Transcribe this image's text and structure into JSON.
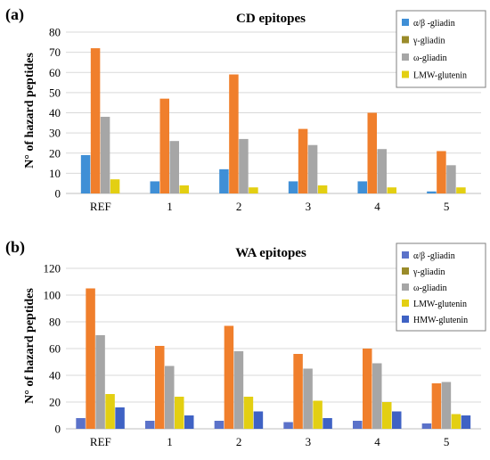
{
  "chart_data": [
    {
      "type": "bar",
      "panel_label": "(a)",
      "title": "CD epitopes",
      "ylabel": "N° of hazard peptides",
      "xlabel": "",
      "categories": [
        "REF",
        "1",
        "2",
        "3",
        "4",
        "5"
      ],
      "ylim": [
        0,
        80
      ],
      "yticks": [
        0,
        10,
        20,
        30,
        40,
        50,
        60,
        70,
        80
      ],
      "grid": true,
      "legend_position": "top-right",
      "series": [
        {
          "name": "α/β -gliadin",
          "color": "#3f8fd6",
          "values": [
            19,
            6,
            12,
            6,
            6,
            1
          ]
        },
        {
          "name": "γ-gliadin",
          "color": "#f07f2c",
          "values": [
            72,
            47,
            59,
            32,
            40,
            21
          ]
        },
        {
          "name": "ω-gliadin",
          "color": "#a6a6a6",
          "values": [
            38,
            26,
            27,
            24,
            22,
            14
          ]
        },
        {
          "name": "LMW-glutenin",
          "color": "#e3cf12",
          "values": [
            7,
            4,
            3,
            4,
            3,
            3
          ]
        }
      ],
      "legend_colors": [
        "#3f8fd6",
        "#9a8b2a",
        "#a6a6a6",
        "#e3cf12"
      ]
    },
    {
      "type": "bar",
      "panel_label": "(b)",
      "title": "WA epitopes",
      "ylabel": "N° of hazard peptides",
      "xlabel": "",
      "categories": [
        "REF",
        "1",
        "2",
        "3",
        "4",
        "5"
      ],
      "ylim": [
        0,
        120
      ],
      "yticks": [
        0,
        20,
        40,
        60,
        80,
        100,
        120
      ],
      "grid": true,
      "legend_position": "top-right",
      "series": [
        {
          "name": "α/β -gliadin",
          "color": "#5b72c9",
          "values": [
            8,
            6,
            6,
            5,
            6,
            4
          ]
        },
        {
          "name": "γ-gliadin",
          "color": "#f07f2c",
          "values": [
            105,
            62,
            77,
            56,
            60,
            34
          ]
        },
        {
          "name": "ω-gliadin",
          "color": "#a6a6a6",
          "values": [
            70,
            47,
            58,
            45,
            49,
            35
          ]
        },
        {
          "name": "LMW-glutenin",
          "color": "#e3cf12",
          "values": [
            26,
            24,
            24,
            21,
            20,
            11
          ]
        },
        {
          "name": "HMW-glutenin",
          "color": "#3f62c4",
          "values": [
            16,
            10,
            13,
            8,
            13,
            10
          ]
        }
      ],
      "legend_colors": [
        "#5b72c9",
        "#9a8b2a",
        "#a6a6a6",
        "#e3cf12",
        "#3f62c4"
      ]
    }
  ]
}
